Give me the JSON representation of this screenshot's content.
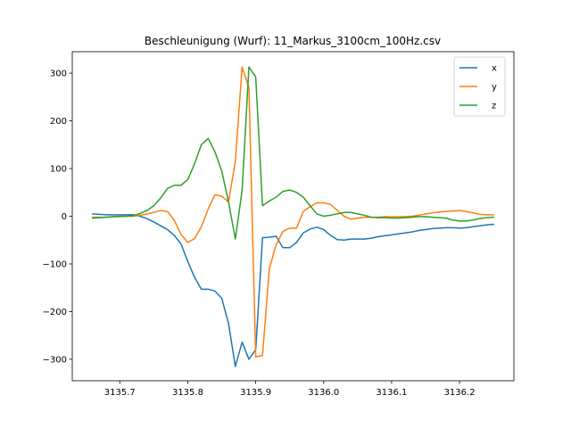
{
  "chart_data": {
    "type": "line",
    "title": "Beschleunigung (Wurf): 11_Markus_3100cm_100Hz.csv",
    "xlabel": "",
    "ylabel": "",
    "xlim": [
      3135.63,
      3136.28
    ],
    "ylim": [
      -345,
      345
    ],
    "xticks": [
      3135.7,
      3135.8,
      3135.9,
      3136.0,
      3136.1,
      3136.2
    ],
    "xtick_labels": [
      "3135.7",
      "3135.8",
      "3135.9",
      "3136.0",
      "3136.1",
      "3136.2"
    ],
    "yticks": [
      -300,
      -200,
      -100,
      0,
      100,
      200,
      300
    ],
    "ytick_labels": [
      "−300",
      "−200",
      "−100",
      "0",
      "100",
      "200",
      "300"
    ],
    "grid": false,
    "legend": "top-right",
    "x": [
      3135.66,
      3135.67,
      3135.68,
      3135.69,
      3135.7,
      3135.71,
      3135.72,
      3135.73,
      3135.74,
      3135.75,
      3135.76,
      3135.77,
      3135.78,
      3135.79,
      3135.8,
      3135.81,
      3135.82,
      3135.83,
      3135.84,
      3135.85,
      3135.86,
      3135.87,
      3135.88,
      3135.89,
      3135.9,
      3135.91,
      3135.92,
      3135.93,
      3135.94,
      3135.95,
      3135.96,
      3135.97,
      3135.98,
      3135.99,
      3136.0,
      3136.01,
      3136.02,
      3136.03,
      3136.04,
      3136.05,
      3136.06,
      3136.07,
      3136.08,
      3136.09,
      3136.1,
      3136.11,
      3136.12,
      3136.13,
      3136.14,
      3136.15,
      3136.16,
      3136.17,
      3136.18,
      3136.19,
      3136.2,
      3136.21,
      3136.22,
      3136.23,
      3136.24,
      3136.25
    ],
    "series": [
      {
        "name": "x",
        "color": "#1f77b4",
        "values": [
          5,
          4,
          3,
          3,
          3,
          3,
          3,
          0,
          -5,
          -12,
          -20,
          -28,
          -40,
          -58,
          -95,
          -128,
          -153,
          -153,
          -157,
          -172,
          -225,
          -315,
          -264,
          -300,
          -280,
          -45,
          -44,
          -42,
          -66,
          -66,
          -55,
          -35,
          -27,
          -23,
          -28,
          -40,
          -49,
          -50,
          -48,
          -48,
          -48,
          -46,
          -43,
          -41,
          -39,
          -37,
          -35,
          -33,
          -30,
          -28,
          -26,
          -25,
          -24,
          -24,
          -25,
          -24,
          -22,
          -20,
          -18,
          -17
        ]
      },
      {
        "name": "y",
        "color": "#ff7f0e",
        "values": [
          -2,
          -2,
          -2,
          -1,
          -1,
          0,
          0,
          2,
          5,
          8,
          12,
          10,
          -8,
          -38,
          -55,
          -47,
          -22,
          15,
          45,
          42,
          30,
          115,
          313,
          270,
          -295,
          -292,
          -110,
          -60,
          -32,
          -25,
          -25,
          10,
          20,
          28,
          28,
          25,
          12,
          0,
          -6,
          -4,
          -2,
          -2,
          -2,
          -1,
          -1,
          -1,
          -1,
          0,
          2,
          5,
          7,
          9,
          10,
          11,
          12,
          10,
          7,
          4,
          3,
          3
        ]
      },
      {
        "name": "z",
        "color": "#2ca02c",
        "values": [
          -4,
          -3,
          -2,
          -1,
          0,
          0,
          1,
          6,
          12,
          22,
          38,
          58,
          65,
          65,
          77,
          110,
          150,
          163,
          135,
          95,
          30,
          -48,
          55,
          313,
          292,
          22,
          32,
          40,
          52,
          55,
          50,
          40,
          22,
          5,
          0,
          2,
          5,
          8,
          8,
          5,
          2,
          -2,
          -3,
          -3,
          -4,
          -4,
          -3,
          -2,
          -1,
          -1,
          -2,
          -3,
          -4,
          -8,
          -10,
          -10,
          -8,
          -5,
          -3,
          -2
        ]
      }
    ]
  }
}
